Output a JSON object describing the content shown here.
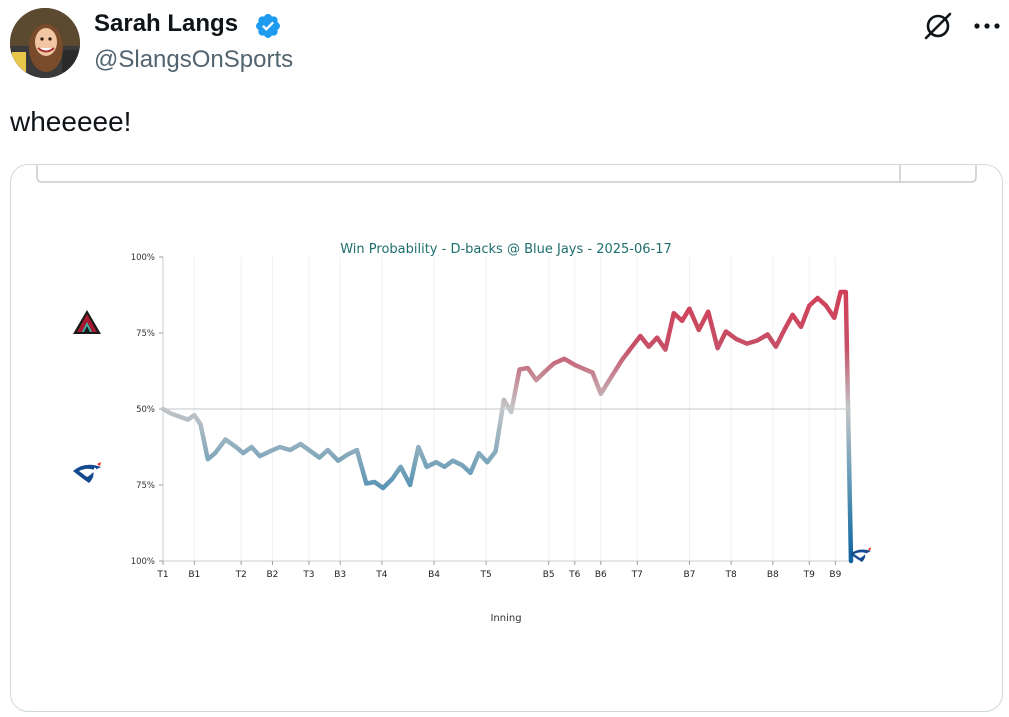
{
  "author": {
    "name": "Sarah Langs",
    "handle": "@SlangsOnSports",
    "verified": true
  },
  "tweet": {
    "text": "wheeeee!"
  },
  "icons": [
    "grok-icon",
    "more-icon",
    "verified-badge-icon",
    "diamondbacks-logo",
    "blue-jays-logo"
  ],
  "colors": {
    "verified": "#1d9bf0",
    "title": "#1f6e6e",
    "dbacks": "#c8384f",
    "jays": "#5b93b3",
    "jays_dark": "#0a63a0",
    "neutral": "#b8bcc0"
  },
  "chart_data": {
    "type": "line",
    "title": "Win Probability - D-backs @ Blue Jays - 2025-06-17",
    "xlabel": "Inning",
    "ylabel": "",
    "y_tick_labels": [
      "100%",
      "75%",
      "50%",
      "75%",
      "100%"
    ],
    "x_tick_labels": [
      "T1",
      "B1",
      "T2",
      "B2",
      "T3",
      "B3",
      "T4",
      "B4",
      "T5",
      "B5",
      "T6",
      "B6",
      "T7",
      "B7",
      "T8",
      "B8",
      "T9",
      "B9"
    ],
    "x_tick_positions": [
      0,
      3,
      7.5,
      10.5,
      14,
      17,
      21,
      26,
      31,
      37,
      39.5,
      42,
      45.5,
      50.5,
      54.5,
      58.5,
      62,
      64.5
    ],
    "teams_top": "D-backs",
    "teams_bottom": "Blue Jays",
    "x_range": [
      0,
      66
    ],
    "ylim": [
      -50,
      50
    ],
    "grid": "vertical",
    "series": [
      {
        "values": [
          {
            "x": 0,
            "y": 0
          },
          {
            "x": 0.8,
            "y": -1.5
          },
          {
            "x": 1.6,
            "y": -2.5
          },
          {
            "x": 2.4,
            "y": -3.5
          },
          {
            "x": 3,
            "y": -2
          },
          {
            "x": 3.6,
            "y": -5
          },
          {
            "x": 4.3,
            "y": -16.5
          },
          {
            "x": 5,
            "y": -14.5
          },
          {
            "x": 6,
            "y": -10
          },
          {
            "x": 7,
            "y": -12.5
          },
          {
            "x": 7.7,
            "y": -14.5
          },
          {
            "x": 8.5,
            "y": -12.5
          },
          {
            "x": 9.3,
            "y": -15.5
          },
          {
            "x": 10.2,
            "y": -14
          },
          {
            "x": 11.2,
            "y": -12.5
          },
          {
            "x": 12.2,
            "y": -13.5
          },
          {
            "x": 13.2,
            "y": -11.5
          },
          {
            "x": 14,
            "y": -13.5
          },
          {
            "x": 15,
            "y": -16
          },
          {
            "x": 15.8,
            "y": -13.5
          },
          {
            "x": 16.8,
            "y": -17
          },
          {
            "x": 17.7,
            "y": -15
          },
          {
            "x": 18.6,
            "y": -13.5
          },
          {
            "x": 19.5,
            "y": -24.5
          },
          {
            "x": 20.3,
            "y": -24
          },
          {
            "x": 21.1,
            "y": -26
          },
          {
            "x": 22,
            "y": -23
          },
          {
            "x": 22.8,
            "y": -19
          },
          {
            "x": 23.7,
            "y": -25
          },
          {
            "x": 24.5,
            "y": -12.5
          },
          {
            "x": 25.3,
            "y": -19
          },
          {
            "x": 26.2,
            "y": -17.5
          },
          {
            "x": 27,
            "y": -19
          },
          {
            "x": 27.8,
            "y": -17
          },
          {
            "x": 28.7,
            "y": -18.5
          },
          {
            "x": 29.5,
            "y": -21
          },
          {
            "x": 30.3,
            "y": -14.5
          },
          {
            "x": 31.1,
            "y": -17.5
          },
          {
            "x": 31.9,
            "y": -14
          },
          {
            "x": 32.7,
            "y": 3
          },
          {
            "x": 33.4,
            "y": -1
          },
          {
            "x": 34.2,
            "y": 13
          },
          {
            "x": 35,
            "y": 13.5
          },
          {
            "x": 35.8,
            "y": 9.5
          },
          {
            "x": 36.7,
            "y": 12.5
          },
          {
            "x": 37.5,
            "y": 15
          },
          {
            "x": 38.5,
            "y": 16.5
          },
          {
            "x": 39.5,
            "y": 14.5
          },
          {
            "x": 40.5,
            "y": 13
          },
          {
            "x": 41.2,
            "y": 12
          },
          {
            "x": 42,
            "y": 5
          },
          {
            "x": 43,
            "y": 10.5
          },
          {
            "x": 44,
            "y": 16
          },
          {
            "x": 45,
            "y": 20.5
          },
          {
            "x": 45.8,
            "y": 24
          },
          {
            "x": 46.6,
            "y": 20.5
          },
          {
            "x": 47.4,
            "y": 23.5
          },
          {
            "x": 48.2,
            "y": 19.5
          },
          {
            "x": 49,
            "y": 31.5
          },
          {
            "x": 49.8,
            "y": 29
          },
          {
            "x": 50.5,
            "y": 33
          },
          {
            "x": 51.4,
            "y": 26
          },
          {
            "x": 52.3,
            "y": 32
          },
          {
            "x": 53.2,
            "y": 20
          },
          {
            "x": 54,
            "y": 25.5
          },
          {
            "x": 55,
            "y": 23
          },
          {
            "x": 56,
            "y": 21.5
          },
          {
            "x": 57,
            "y": 22.5
          },
          {
            "x": 58,
            "y": 24.5
          },
          {
            "x": 58.8,
            "y": 20.5
          },
          {
            "x": 59.6,
            "y": 26
          },
          {
            "x": 60.4,
            "y": 31
          },
          {
            "x": 61.2,
            "y": 27
          },
          {
            "x": 62,
            "y": 34
          },
          {
            "x": 62.8,
            "y": 36.5
          },
          {
            "x": 63.6,
            "y": 34
          },
          {
            "x": 64.4,
            "y": 30
          },
          {
            "x": 65,
            "y": 38.5
          },
          {
            "x": 65.5,
            "y": 38.5
          },
          {
            "x": 66,
            "y": -50
          }
        ]
      }
    ]
  }
}
